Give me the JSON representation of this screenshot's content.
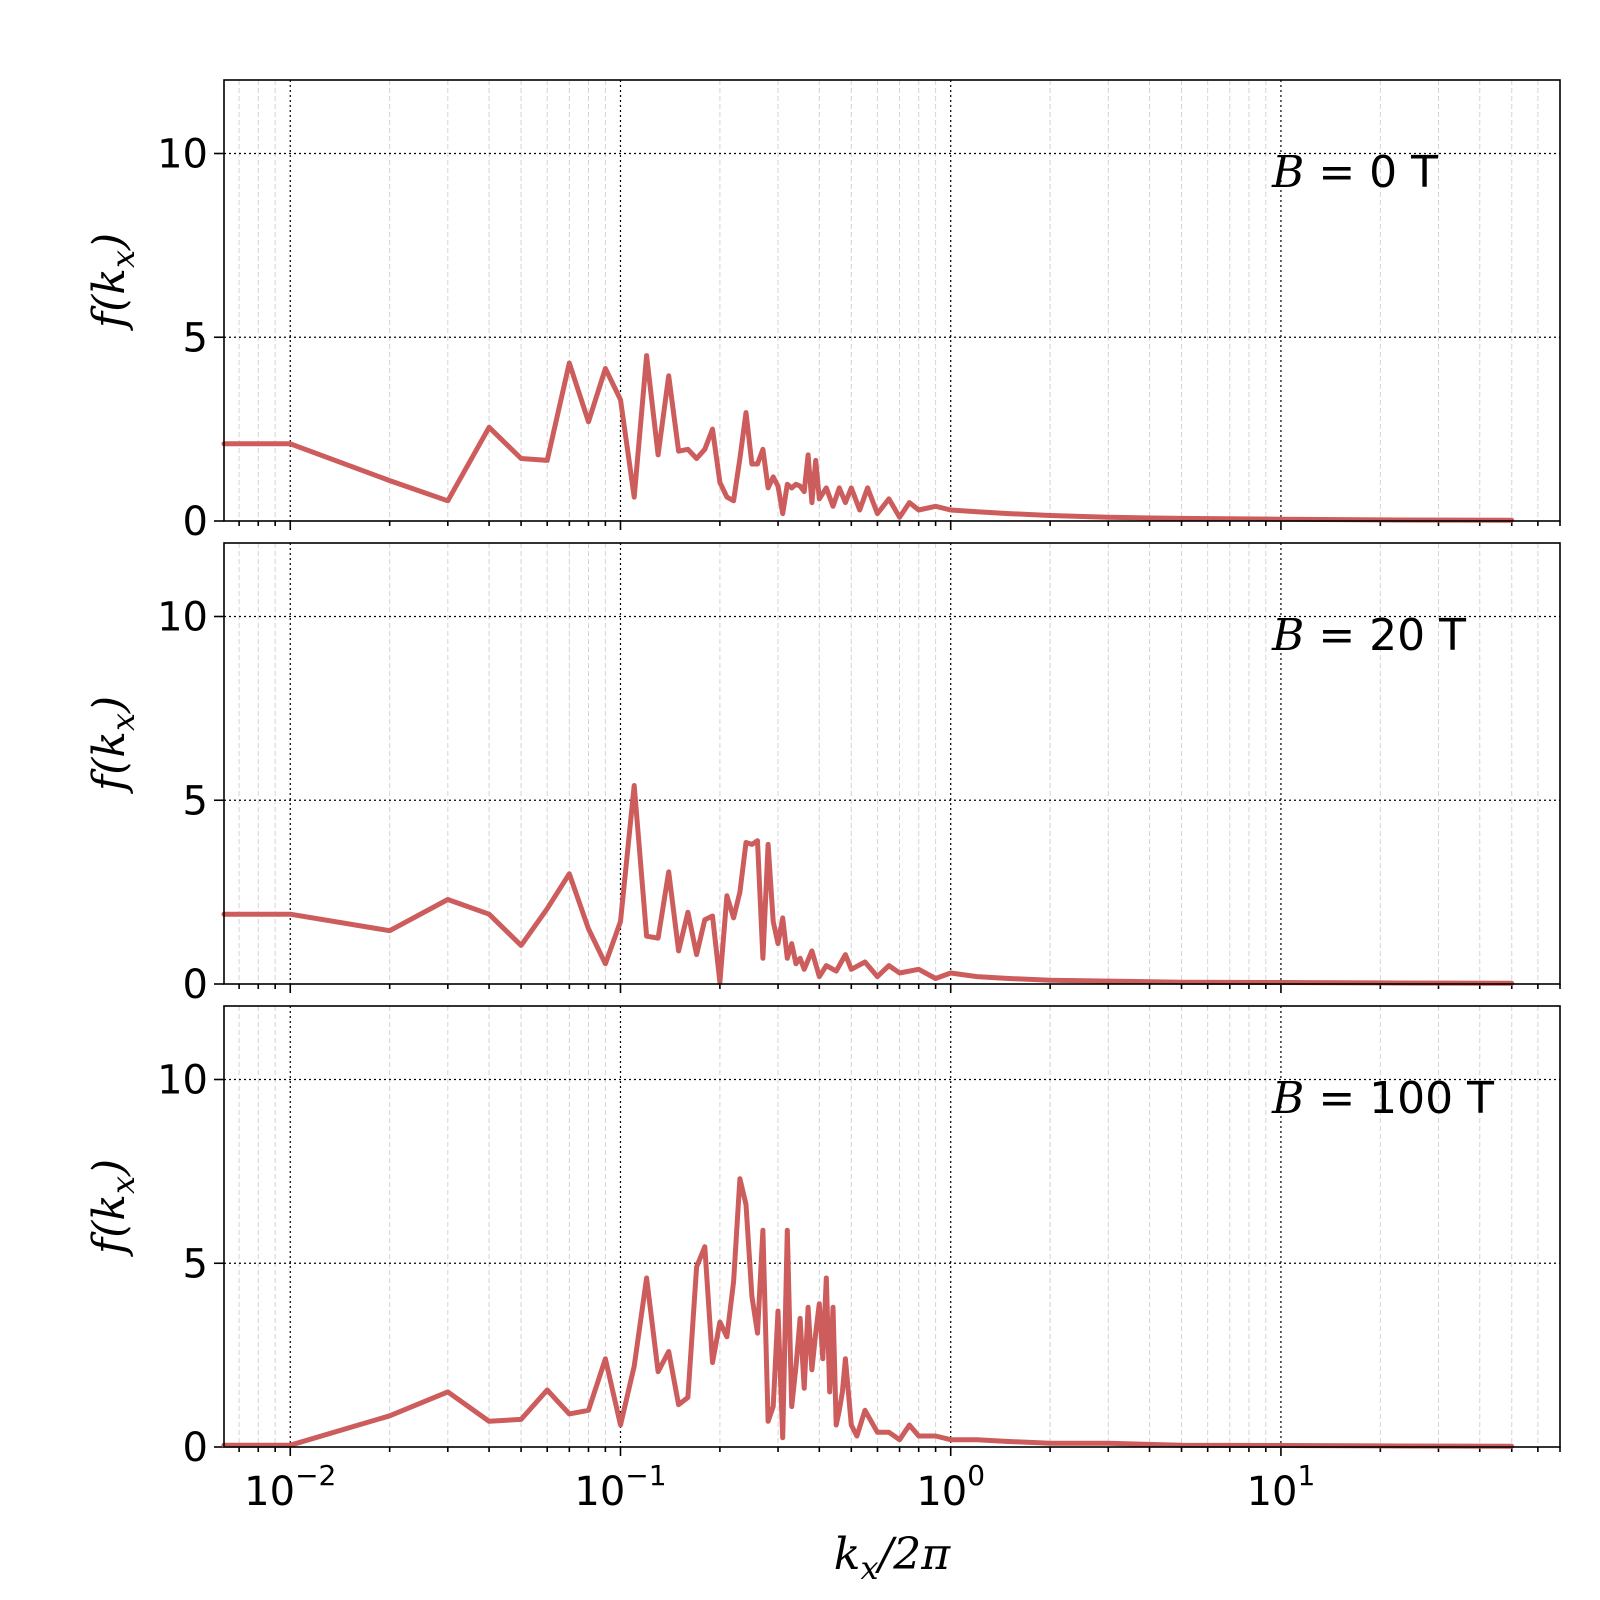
{
  "chart_data": [
    {
      "type": "line",
      "annotation": "B = 0 T",
      "annotation_var": "B",
      "annotation_rest": " = 0 T",
      "xscale": "log",
      "xlim": [
        0.0063,
        70
      ],
      "ylim": [
        0,
        12
      ],
      "yticks": [
        "0",
        "5",
        "10"
      ],
      "ylabel": "f(kx)",
      "ylabel_base": "f(k",
      "ylabel_sub": "x",
      "ylabel_close": ")",
      "grid": true,
      "series": [
        {
          "color": "#cd5c5c",
          "x": [
            0.0063,
            0.01,
            0.02,
            0.03,
            0.04,
            0.05,
            0.06,
            0.07,
            0.08,
            0.09,
            0.1,
            0.11,
            0.12,
            0.13,
            0.14,
            0.15,
            0.16,
            0.17,
            0.18,
            0.19,
            0.2,
            0.21,
            0.22,
            0.23,
            0.24,
            0.25,
            0.26,
            0.27,
            0.28,
            0.29,
            0.3,
            0.31,
            0.32,
            0.33,
            0.34,
            0.35,
            0.36,
            0.37,
            0.38,
            0.39,
            0.4,
            0.42,
            0.44,
            0.46,
            0.48,
            0.5,
            0.53,
            0.56,
            0.6,
            0.65,
            0.7,
            0.75,
            0.8,
            0.9,
            1.0,
            1.2,
            1.5,
            2.0,
            3.0,
            5.0,
            10.0,
            20.0,
            50.0
          ],
          "y": [
            2.1,
            2.1,
            1.1,
            0.55,
            2.55,
            1.7,
            1.65,
            4.3,
            2.7,
            4.15,
            3.3,
            0.65,
            4.5,
            1.8,
            3.95,
            1.9,
            1.95,
            1.7,
            1.95,
            2.5,
            1.05,
            0.65,
            0.55,
            1.7,
            2.95,
            1.55,
            1.55,
            1.95,
            0.9,
            1.2,
            0.95,
            0.2,
            1.0,
            0.9,
            1.0,
            0.95,
            0.8,
            1.8,
            0.5,
            1.65,
            0.6,
            0.9,
            0.4,
            0.9,
            0.5,
            0.9,
            0.3,
            0.9,
            0.2,
            0.6,
            0.1,
            0.5,
            0.3,
            0.4,
            0.3,
            0.25,
            0.2,
            0.15,
            0.1,
            0.07,
            0.05,
            0.03,
            0.02
          ]
        }
      ]
    },
    {
      "type": "line",
      "annotation": "B = 20 T",
      "annotation_var": "B",
      "annotation_rest": " = 20 T",
      "xscale": "log",
      "xlim": [
        0.0063,
        70
      ],
      "ylim": [
        0,
        12
      ],
      "yticks": [
        "0",
        "5",
        "10"
      ],
      "ylabel": "f(kx)",
      "ylabel_base": "f(k",
      "ylabel_sub": "x",
      "ylabel_close": ")",
      "grid": true,
      "series": [
        {
          "color": "#cd5c5c",
          "x": [
            0.0063,
            0.01,
            0.02,
            0.03,
            0.04,
            0.05,
            0.06,
            0.07,
            0.08,
            0.09,
            0.1,
            0.11,
            0.12,
            0.13,
            0.14,
            0.15,
            0.16,
            0.17,
            0.18,
            0.19,
            0.2,
            0.21,
            0.22,
            0.23,
            0.24,
            0.25,
            0.26,
            0.27,
            0.28,
            0.29,
            0.3,
            0.31,
            0.32,
            0.33,
            0.34,
            0.35,
            0.36,
            0.38,
            0.4,
            0.42,
            0.45,
            0.48,
            0.5,
            0.55,
            0.6,
            0.65,
            0.7,
            0.8,
            0.9,
            1.0,
            1.2,
            1.5,
            2.0,
            3.0,
            5.0,
            10.0,
            20.0,
            50.0
          ],
          "y": [
            1.9,
            1.9,
            1.45,
            2.3,
            1.9,
            1.05,
            2.05,
            3.0,
            1.5,
            0.55,
            1.7,
            5.4,
            1.3,
            1.25,
            3.05,
            0.9,
            1.95,
            0.8,
            1.75,
            1.85,
            0.05,
            2.4,
            1.8,
            2.5,
            3.85,
            3.8,
            3.9,
            0.7,
            3.8,
            1.7,
            1.1,
            1.8,
            0.7,
            1.1,
            0.55,
            0.7,
            0.4,
            0.9,
            0.2,
            0.5,
            0.35,
            0.8,
            0.4,
            0.6,
            0.2,
            0.5,
            0.3,
            0.4,
            0.15,
            0.3,
            0.2,
            0.15,
            0.1,
            0.08,
            0.05,
            0.04,
            0.03,
            0.02
          ]
        }
      ]
    },
    {
      "type": "line",
      "annotation": "B = 100 T",
      "annotation_var": "B",
      "annotation_rest": " = 100 T",
      "xscale": "log",
      "xlim": [
        0.0063,
        70
      ],
      "ylim": [
        0,
        12
      ],
      "yticks": [
        "0",
        "5",
        "10"
      ],
      "ylabel": "f(kx)",
      "ylabel_base": "f(k",
      "ylabel_sub": "x",
      "ylabel_close": ")",
      "xlabel": "kx/2π",
      "xlabel_base": "k",
      "xlabel_sub": "x",
      "xlabel_rest": "/2π",
      "xticks": [
        {
          "value": 0.01,
          "base": "10",
          "exp": "−2"
        },
        {
          "value": 0.1,
          "base": "10",
          "exp": "−1"
        },
        {
          "value": 1,
          "base": "10",
          "exp": "0"
        },
        {
          "value": 10,
          "base": "10",
          "exp": "1"
        }
      ],
      "grid": true,
      "series": [
        {
          "color": "#cd5c5c",
          "x": [
            0.0063,
            0.01,
            0.02,
            0.03,
            0.04,
            0.05,
            0.06,
            0.07,
            0.08,
            0.09,
            0.1,
            0.11,
            0.12,
            0.13,
            0.14,
            0.15,
            0.16,
            0.17,
            0.18,
            0.19,
            0.2,
            0.21,
            0.22,
            0.23,
            0.24,
            0.25,
            0.26,
            0.27,
            0.28,
            0.29,
            0.3,
            0.31,
            0.32,
            0.33,
            0.34,
            0.35,
            0.36,
            0.37,
            0.38,
            0.39,
            0.4,
            0.41,
            0.42,
            0.43,
            0.44,
            0.45,
            0.46,
            0.47,
            0.48,
            0.5,
            0.52,
            0.55,
            0.6,
            0.65,
            0.7,
            0.75,
            0.8,
            0.9,
            1.0,
            1.2,
            1.5,
            2.0,
            3.0,
            5.0,
            10.0,
            20.0,
            50.0
          ],
          "y": [
            0.05,
            0.05,
            0.85,
            1.5,
            0.7,
            0.75,
            1.55,
            0.9,
            1.0,
            2.4,
            0.6,
            2.2,
            4.6,
            2.05,
            2.6,
            1.15,
            1.35,
            4.9,
            5.45,
            2.3,
            3.4,
            3.0,
            4.5,
            7.3,
            6.6,
            4.1,
            3.1,
            5.9,
            0.7,
            1.1,
            3.7,
            0.25,
            5.9,
            1.1,
            2.2,
            3.5,
            1.6,
            3.8,
            2.1,
            3.1,
            3.9,
            2.4,
            4.6,
            1.5,
            3.8,
            0.6,
            1.0,
            1.5,
            2.4,
            0.6,
            0.3,
            1.0,
            0.4,
            0.4,
            0.2,
            0.6,
            0.3,
            0.3,
            0.2,
            0.2,
            0.15,
            0.1,
            0.1,
            0.05,
            0.04,
            0.03,
            0.02
          ]
        }
      ]
    }
  ]
}
